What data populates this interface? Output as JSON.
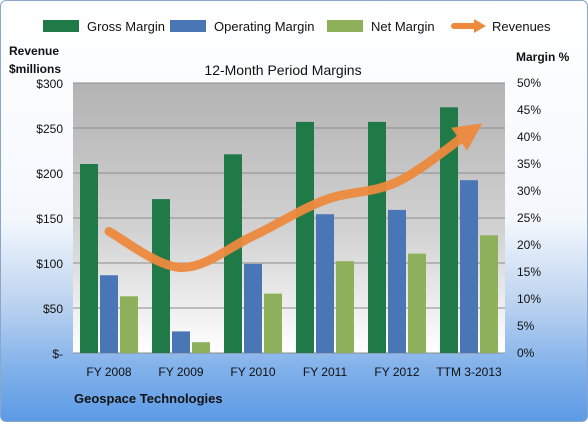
{
  "chart_data": {
    "type": "bar",
    "title": "12-Month Period Margins",
    "company": "Geospace Technologies",
    "left_axis_label": [
      "Revenue",
      "$millions"
    ],
    "right_axis_label": "Margin %",
    "left_axis_ticks": [
      "$-",
      "$50",
      "$100",
      "$150",
      "$200",
      "$250",
      "$300"
    ],
    "left_axis_range": [
      0,
      300
    ],
    "right_axis_ticks": [
      "0%",
      "5%",
      "10%",
      "15%",
      "20%",
      "25%",
      "30%",
      "35%",
      "40%",
      "45%",
      "50%"
    ],
    "right_axis_range": [
      0,
      50
    ],
    "categories": [
      "FY 2008",
      "FY 2009",
      "FY 2010",
      "FY 2011",
      "FY 2012",
      "TTM 3-2013"
    ],
    "series": [
      {
        "name": "Gross Margin",
        "axis": "right",
        "color": "#1f7a47",
        "values": [
          35,
          28.5,
          36.8,
          42.8,
          42.8,
          45.5
        ]
      },
      {
        "name": "Operating Margin",
        "axis": "right",
        "color": "#4a76b5",
        "values": [
          14.4,
          4,
          16.5,
          25.7,
          26.5,
          32
        ]
      },
      {
        "name": "Net Margin",
        "axis": "right",
        "color": "#8fb05a",
        "values": [
          10.5,
          2,
          11,
          17,
          18.4,
          21.8
        ]
      },
      {
        "name": "Revenues",
        "axis": "left",
        "color": "#ee8a3e",
        "type": "line",
        "values": [
          135,
          95,
          130,
          170,
          190,
          245
        ]
      }
    ],
    "grid": true,
    "legend_position": "top"
  }
}
